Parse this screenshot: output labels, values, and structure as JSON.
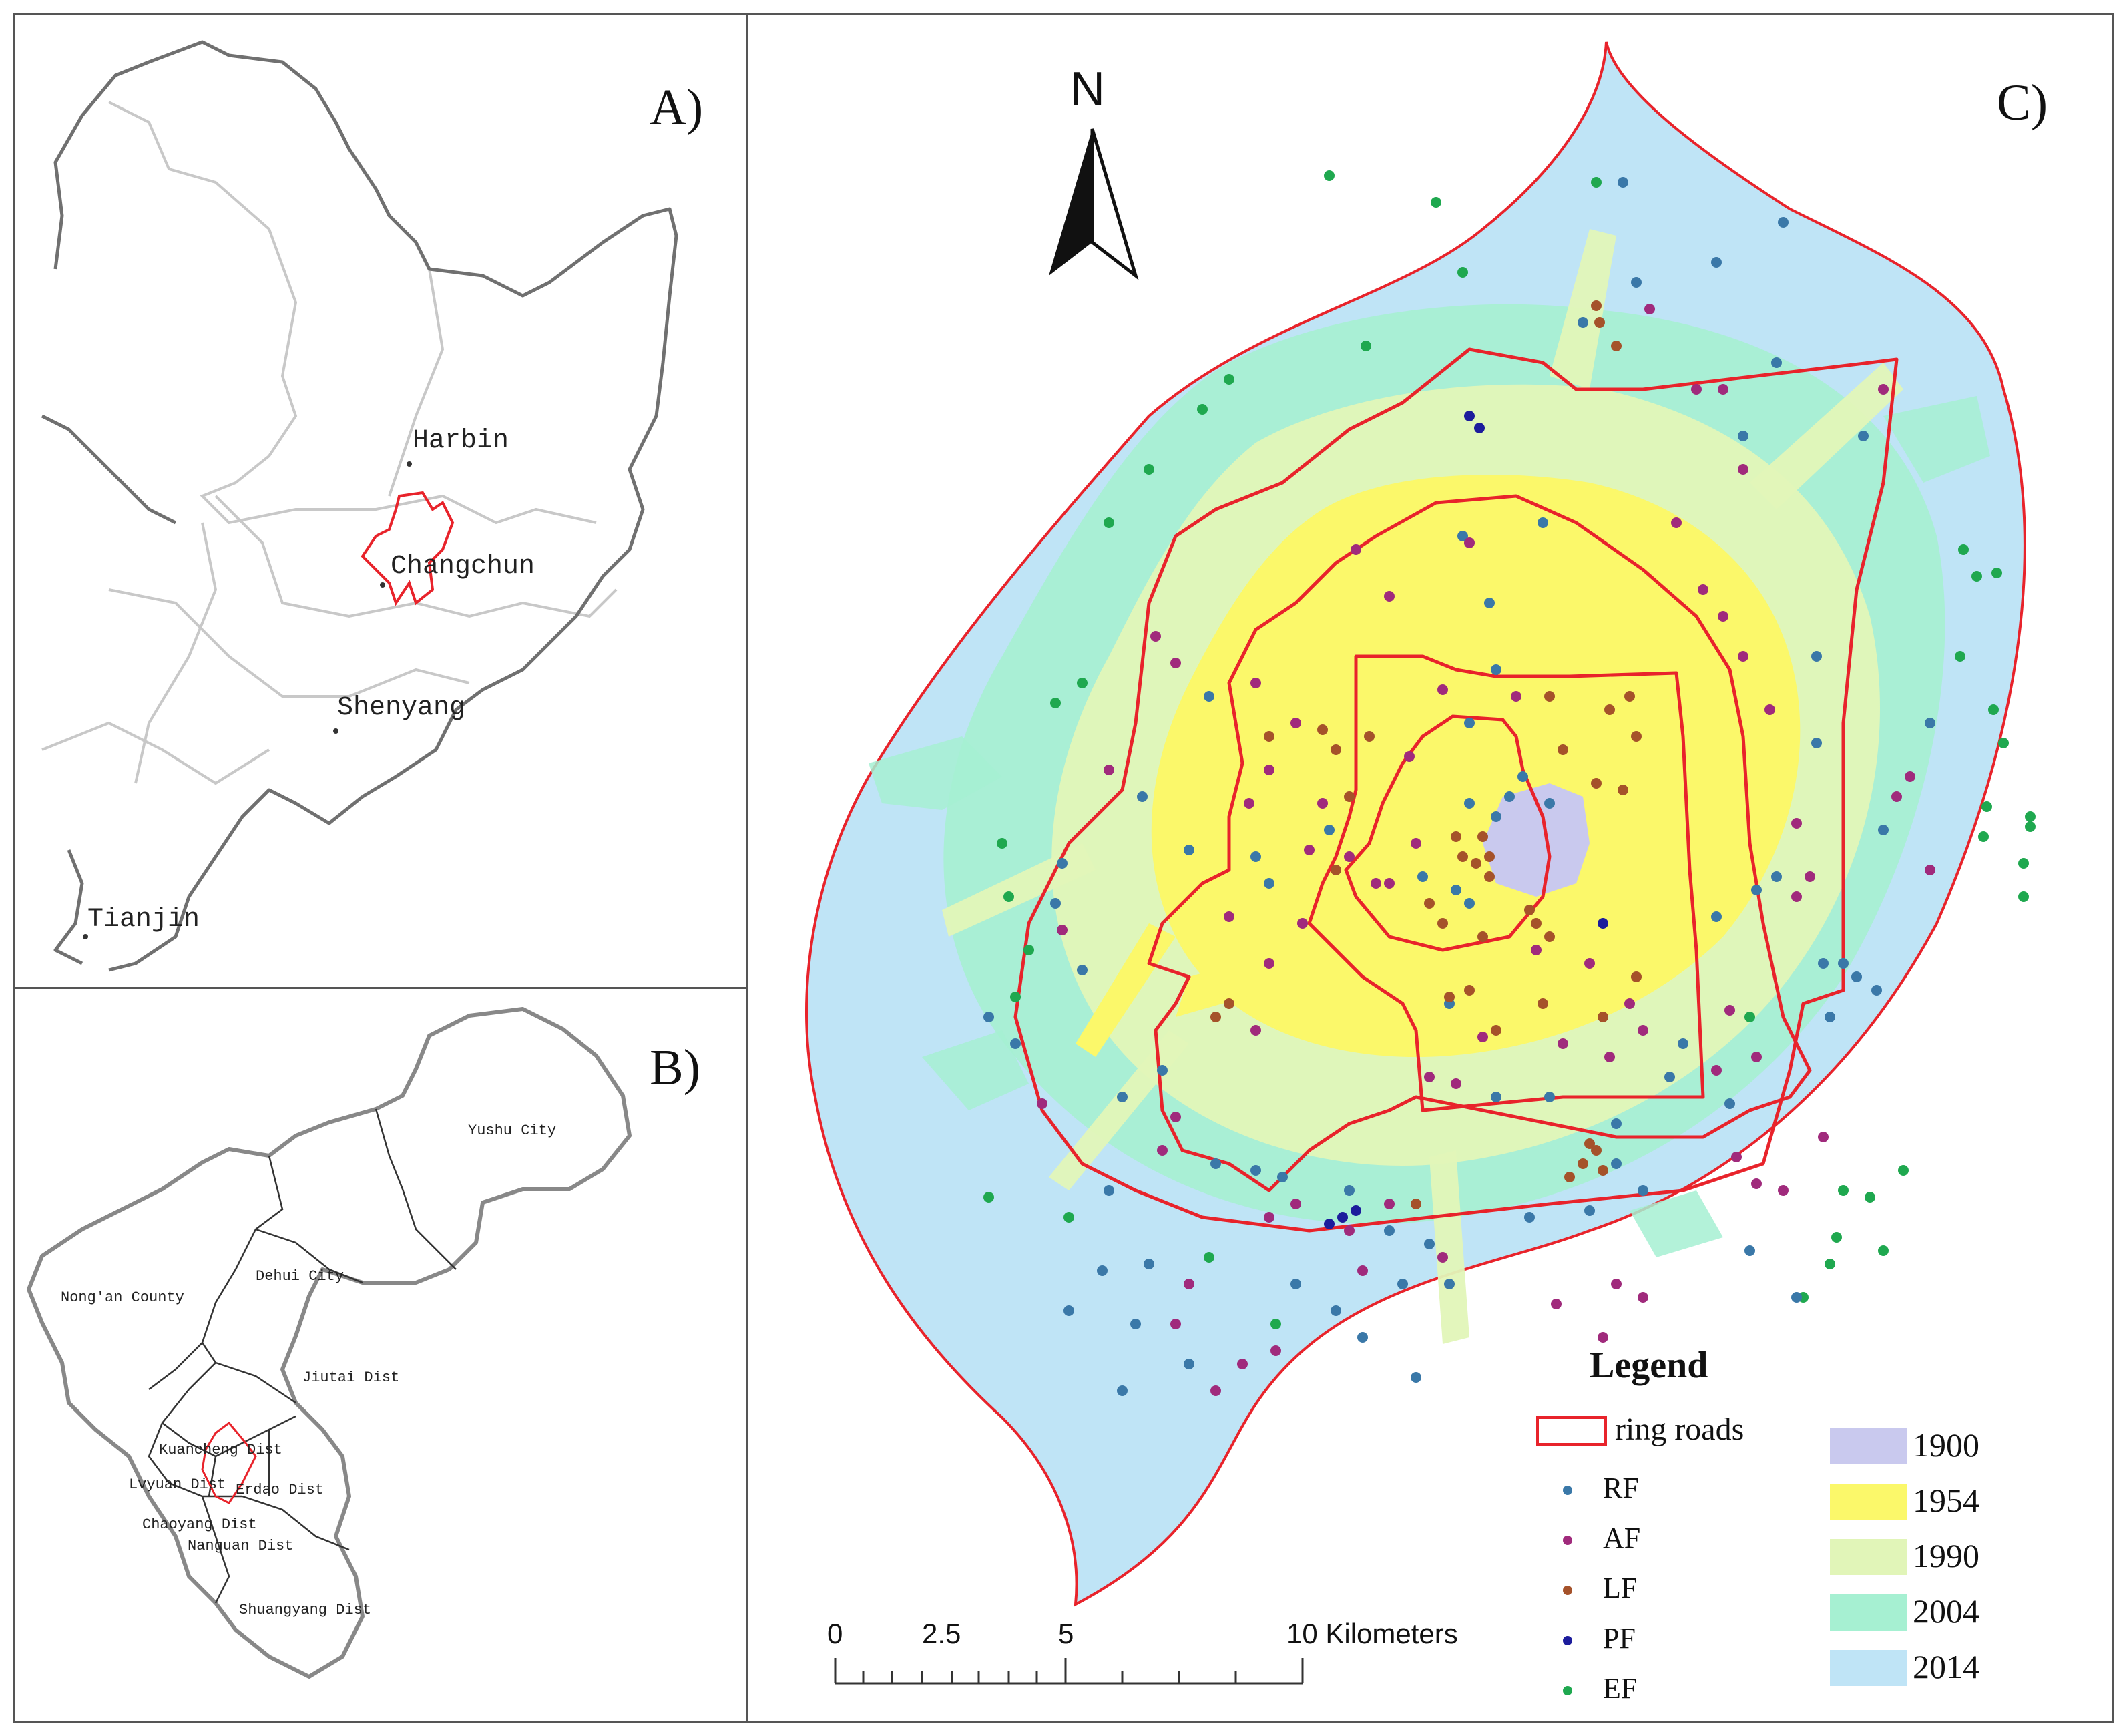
{
  "panel_a": {
    "label": "A)",
    "cities": [
      {
        "name": "Harbin"
      },
      {
        "name": "Changchun"
      },
      {
        "name": "Shenyang"
      },
      {
        "name": "Tianjin"
      }
    ]
  },
  "panel_b": {
    "label": "B)",
    "districts": [
      {
        "name": "Yushu City"
      },
      {
        "name": "Dehui City"
      },
      {
        "name": "Nong'an County"
      },
      {
        "name": "Jiutai Dist"
      },
      {
        "name": "Kuancheng Dist"
      },
      {
        "name": "Lvyuan Dist"
      },
      {
        "name": "Erdao Dist"
      },
      {
        "name": "Chaoyang Dist"
      },
      {
        "name": "Nanguan Dist"
      },
      {
        "name": "Shuangyang Dist"
      }
    ]
  },
  "panel_c": {
    "label": "C)",
    "north_arrow": {
      "label": "N",
      "icon": "north-arrow-icon"
    },
    "scale_bar": {
      "ticks": [
        "0",
        "2.5",
        "5",
        "10 Kilometers"
      ]
    },
    "legend": {
      "title": "Legend",
      "ring_roads_label": "ring roads",
      "ring_roads_color": "#e8232b",
      "points": [
        {
          "code": "RF",
          "color": "#3a78a8"
        },
        {
          "code": "AF",
          "color": "#a02a7c"
        },
        {
          "code": "LF",
          "color": "#a5522a"
        },
        {
          "code": "PF",
          "color": "#1c1c9c"
        },
        {
          "code": "EF",
          "color": "#1fa84f"
        }
      ],
      "years": [
        {
          "year": "1900",
          "color": "#c9c9ee"
        },
        {
          "year": "1954",
          "color": "#fbf86a"
        },
        {
          "year": "1990",
          "color": "#e1f5b8"
        },
        {
          "year": "2004",
          "color": "#a6f0d2"
        },
        {
          "year": "2014",
          "color": "#bfe4f6"
        }
      ]
    }
  }
}
